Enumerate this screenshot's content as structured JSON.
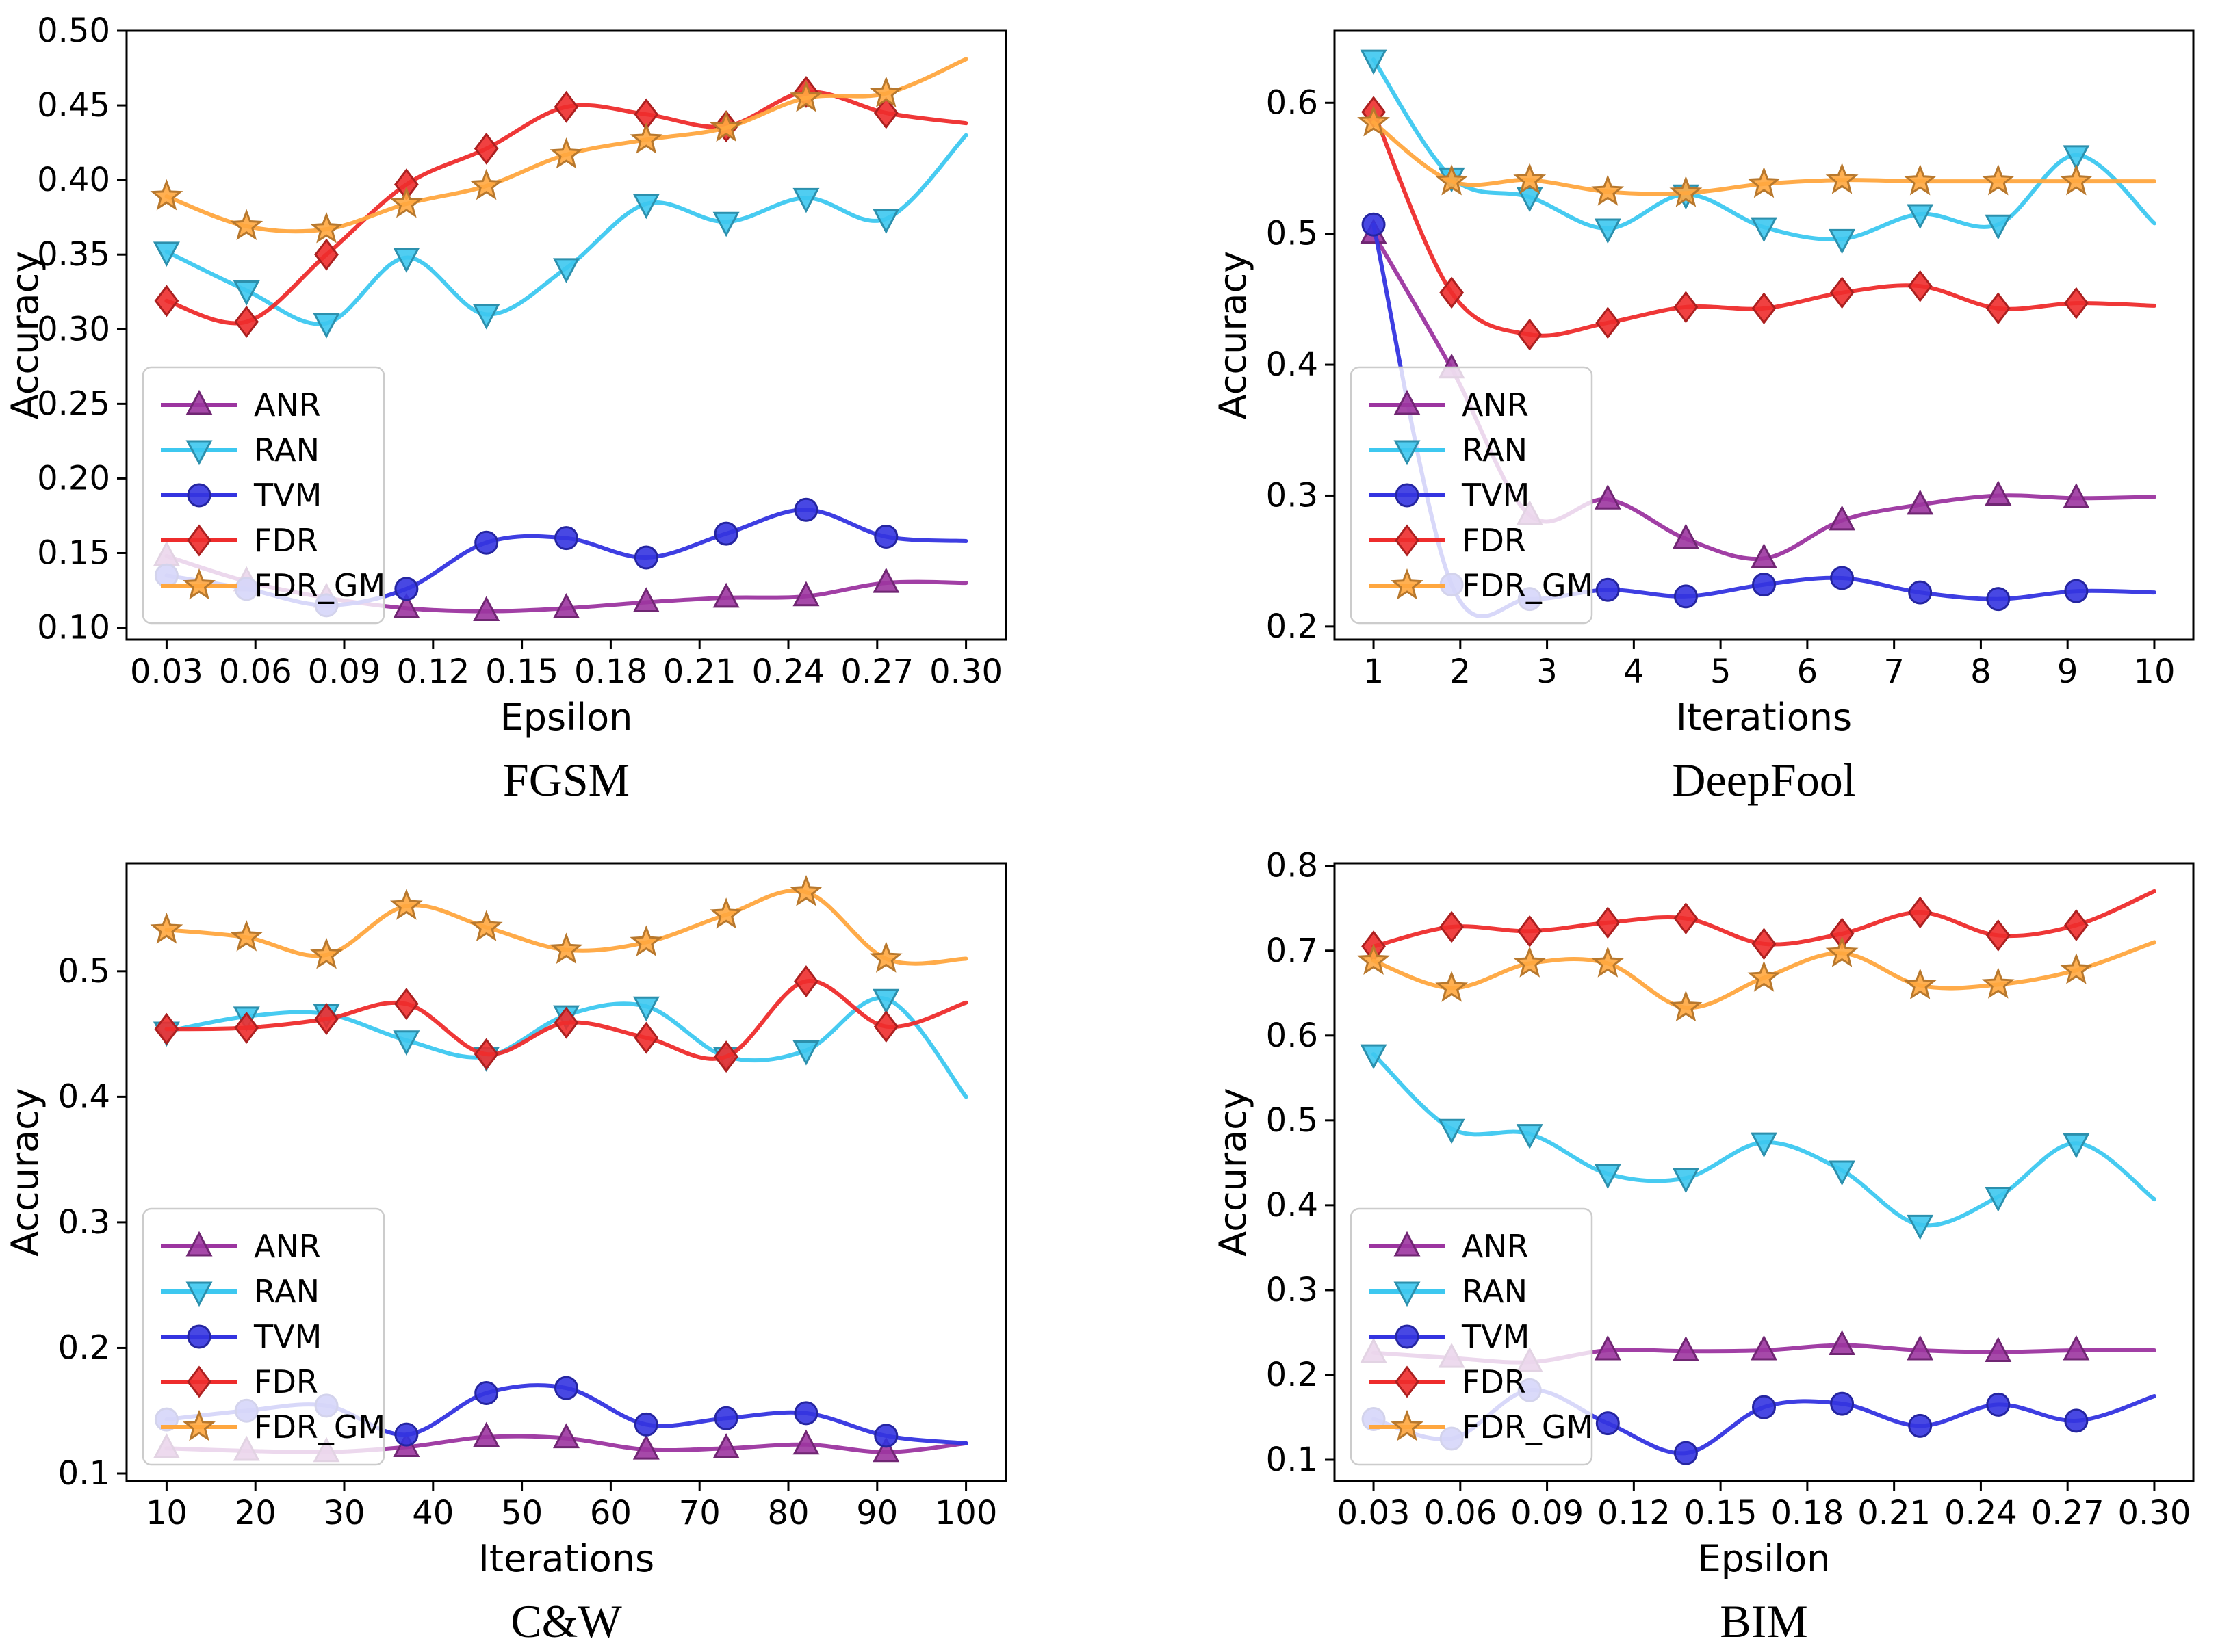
{
  "figure": {
    "background": "#ffffff",
    "ylabel": "Accuracy",
    "legend_labels": [
      "ANR",
      "RAN",
      "TVM",
      "FDR",
      "FDR_GM"
    ]
  },
  "chart_data": [
    {
      "id": "fgsm",
      "type": "line",
      "title": "FGSM",
      "xlabel": "Epsilon",
      "ylabel": "Accuracy",
      "legend_position": "lower-left",
      "grid": false,
      "xlim": [
        0.0165,
        0.3135
      ],
      "ylim": [
        0.092,
        0.5
      ],
      "xticks": [
        0.03,
        0.06,
        0.09,
        0.12,
        0.15,
        0.18,
        0.21,
        0.24,
        0.27,
        0.3
      ],
      "xtick_labels": [
        "0.03",
        "0.06",
        "0.09",
        "0.12",
        "0.15",
        "0.18",
        "0.21",
        "0.24",
        "0.27",
        "0.30"
      ],
      "yticks": [
        0.1,
        0.15,
        0.2,
        0.25,
        0.3,
        0.35,
        0.4,
        0.45,
        0.5
      ],
      "ytick_labels": [
        "0.10",
        "0.15",
        "0.20",
        "0.25",
        "0.30",
        "0.35",
        "0.40",
        "0.45",
        "0.50"
      ],
      "x": [
        0.03,
        0.057,
        0.084,
        0.111,
        0.138,
        0.165,
        0.192,
        0.219,
        0.246,
        0.273,
        0.3
      ],
      "series": [
        {
          "name": "ANR",
          "color": "#9C35A0",
          "marker": "triangle-up",
          "values": [
            0.148,
            0.131,
            0.12,
            0.113,
            0.111,
            0.113,
            0.117,
            0.12,
            0.121,
            0.13,
            0.13
          ]
        },
        {
          "name": "RAN",
          "color": "#3DC8F0",
          "marker": "triangle-down",
          "values": [
            0.352,
            0.326,
            0.304,
            0.348,
            0.31,
            0.341,
            0.384,
            0.372,
            0.388,
            0.374,
            0.43
          ]
        },
        {
          "name": "TVM",
          "color": "#3434E0",
          "marker": "circle",
          "values": [
            0.135,
            0.126,
            0.115,
            0.126,
            0.157,
            0.16,
            0.147,
            0.163,
            0.179,
            0.161,
            0.158
          ]
        },
        {
          "name": "FDR",
          "color": "#EE2C2C",
          "marker": "diamond",
          "values": [
            0.319,
            0.305,
            0.35,
            0.397,
            0.421,
            0.449,
            0.444,
            0.436,
            0.459,
            0.445,
            0.438
          ]
        },
        {
          "name": "FDR_GM",
          "color": "#FFA73F",
          "marker": "star",
          "values": [
            0.389,
            0.369,
            0.367,
            0.384,
            0.396,
            0.417,
            0.427,
            0.435,
            0.455,
            0.458,
            0.481
          ]
        }
      ]
    },
    {
      "id": "deepfool",
      "type": "line",
      "title": "DeepFool",
      "xlabel": "Iterations",
      "ylabel": "Accuracy",
      "legend_position": "lower-left",
      "grid": false,
      "xlim": [
        0.55,
        10.45
      ],
      "ylim": [
        0.19,
        0.655
      ],
      "xticks": [
        1,
        2,
        3,
        4,
        5,
        6,
        7,
        8,
        9,
        10
      ],
      "xtick_labels": [
        "1",
        "2",
        "3",
        "4",
        "5",
        "6",
        "7",
        "8",
        "9",
        "10"
      ],
      "yticks": [
        0.2,
        0.3,
        0.4,
        0.5,
        0.6
      ],
      "ytick_labels": [
        "0.2",
        "0.3",
        "0.4",
        "0.5",
        "0.6"
      ],
      "x": [
        1,
        1.9,
        2.8,
        3.7,
        4.6,
        5.5,
        6.4,
        7.3,
        8.2,
        9.1,
        10
      ],
      "series": [
        {
          "name": "ANR",
          "color": "#9C35A0",
          "marker": "triangle-up",
          "values": [
            0.5,
            0.397,
            0.285,
            0.297,
            0.267,
            0.252,
            0.281,
            0.293,
            0.3,
            0.298,
            0.299
          ]
        },
        {
          "name": "RAN",
          "color": "#3DC8F0",
          "marker": "triangle-down",
          "values": [
            0.633,
            0.543,
            0.528,
            0.504,
            0.53,
            0.505,
            0.496,
            0.515,
            0.507,
            0.56,
            0.508
          ]
        },
        {
          "name": "TVM",
          "color": "#3434E0",
          "marker": "circle",
          "values": [
            0.507,
            0.232,
            0.221,
            0.228,
            0.223,
            0.232,
            0.237,
            0.226,
            0.221,
            0.227,
            0.226
          ]
        },
        {
          "name": "FDR",
          "color": "#EE2C2C",
          "marker": "diamond",
          "values": [
            0.593,
            0.455,
            0.423,
            0.432,
            0.444,
            0.443,
            0.455,
            0.46,
            0.443,
            0.447,
            0.445
          ]
        },
        {
          "name": "FDR_GM",
          "color": "#FFA73F",
          "marker": "star",
          "values": [
            0.585,
            0.54,
            0.541,
            0.532,
            0.531,
            0.538,
            0.541,
            0.54,
            0.54,
            0.54,
            0.54
          ]
        }
      ]
    },
    {
      "id": "cw",
      "type": "line",
      "title": "C&W",
      "xlabel": "Iterations",
      "ylabel": "Accuracy",
      "legend_position": "lower-left",
      "grid": false,
      "xlim": [
        5.5,
        104.5
      ],
      "ylim": [
        0.094,
        0.586
      ],
      "xticks": [
        10,
        20,
        30,
        40,
        50,
        60,
        70,
        80,
        90,
        100
      ],
      "xtick_labels": [
        "10",
        "20",
        "30",
        "40",
        "50",
        "60",
        "70",
        "80",
        "90",
        "100"
      ],
      "yticks": [
        0.1,
        0.2,
        0.3,
        0.4,
        0.5
      ],
      "ytick_labels": [
        "0.1",
        "0.2",
        "0.3",
        "0.4",
        "0.5"
      ],
      "x": [
        10,
        19,
        28,
        37,
        46,
        55,
        64,
        73,
        82,
        91,
        100
      ],
      "series": [
        {
          "name": "ANR",
          "color": "#9C35A0",
          "marker": "triangle-up",
          "values": [
            0.12,
            0.118,
            0.117,
            0.121,
            0.129,
            0.128,
            0.119,
            0.12,
            0.123,
            0.117,
            0.124
          ]
        },
        {
          "name": "RAN",
          "color": "#3DC8F0",
          "marker": "triangle-down",
          "values": [
            0.452,
            0.464,
            0.466,
            0.445,
            0.432,
            0.465,
            0.472,
            0.432,
            0.437,
            0.478,
            0.4
          ]
        },
        {
          "name": "TVM",
          "color": "#3434E0",
          "marker": "circle",
          "values": [
            0.143,
            0.15,
            0.154,
            0.131,
            0.164,
            0.168,
            0.139,
            0.144,
            0.148,
            0.13,
            0.124
          ]
        },
        {
          "name": "FDR",
          "color": "#EE2C2C",
          "marker": "diamond",
          "values": [
            0.454,
            0.455,
            0.462,
            0.474,
            0.434,
            0.459,
            0.447,
            0.432,
            0.492,
            0.456,
            0.475
          ]
        },
        {
          "name": "FDR_GM",
          "color": "#FFA73F",
          "marker": "star",
          "values": [
            0.533,
            0.527,
            0.513,
            0.552,
            0.535,
            0.517,
            0.523,
            0.545,
            0.563,
            0.51,
            0.51
          ]
        }
      ]
    },
    {
      "id": "bim",
      "type": "line",
      "title": "BIM",
      "xlabel": "Epsilon",
      "ylabel": "Accuracy",
      "legend_position": "lower-left",
      "grid": false,
      "xlim": [
        0.0165,
        0.3135
      ],
      "ylim": [
        0.075,
        0.803
      ],
      "xticks": [
        0.03,
        0.06,
        0.09,
        0.12,
        0.15,
        0.18,
        0.21,
        0.24,
        0.27,
        0.3
      ],
      "xtick_labels": [
        "0.03",
        "0.06",
        "0.09",
        "0.12",
        "0.15",
        "0.18",
        "0.21",
        "0.24",
        "0.27",
        "0.30"
      ],
      "yticks": [
        0.1,
        0.2,
        0.3,
        0.4,
        0.5,
        0.6,
        0.7,
        0.8
      ],
      "ytick_labels": [
        "0.1",
        "0.2",
        "0.3",
        "0.4",
        "0.5",
        "0.6",
        "0.7",
        "0.8"
      ],
      "x": [
        0.03,
        0.057,
        0.084,
        0.111,
        0.138,
        0.165,
        0.192,
        0.219,
        0.246,
        0.273,
        0.3
      ],
      "series": [
        {
          "name": "ANR",
          "color": "#9C35A0",
          "marker": "triangle-up",
          "values": [
            0.226,
            0.22,
            0.215,
            0.229,
            0.228,
            0.229,
            0.235,
            0.229,
            0.227,
            0.229,
            0.229
          ]
        },
        {
          "name": "RAN",
          "color": "#3DC8F0",
          "marker": "triangle-down",
          "values": [
            0.578,
            0.49,
            0.484,
            0.437,
            0.432,
            0.474,
            0.441,
            0.377,
            0.41,
            0.473,
            0.407
          ]
        },
        {
          "name": "TVM",
          "color": "#3434E0",
          "marker": "circle",
          "values": [
            0.148,
            0.125,
            0.182,
            0.143,
            0.108,
            0.162,
            0.166,
            0.14,
            0.165,
            0.146,
            0.175
          ]
        },
        {
          "name": "FDR",
          "color": "#EE2C2C",
          "marker": "diamond",
          "values": [
            0.705,
            0.728,
            0.723,
            0.733,
            0.738,
            0.708,
            0.72,
            0.745,
            0.718,
            0.73,
            0.77
          ]
        },
        {
          "name": "FDR_GM",
          "color": "#FFA73F",
          "marker": "star",
          "values": [
            0.688,
            0.656,
            0.685,
            0.685,
            0.633,
            0.668,
            0.697,
            0.659,
            0.66,
            0.677,
            0.71
          ]
        }
      ]
    }
  ]
}
